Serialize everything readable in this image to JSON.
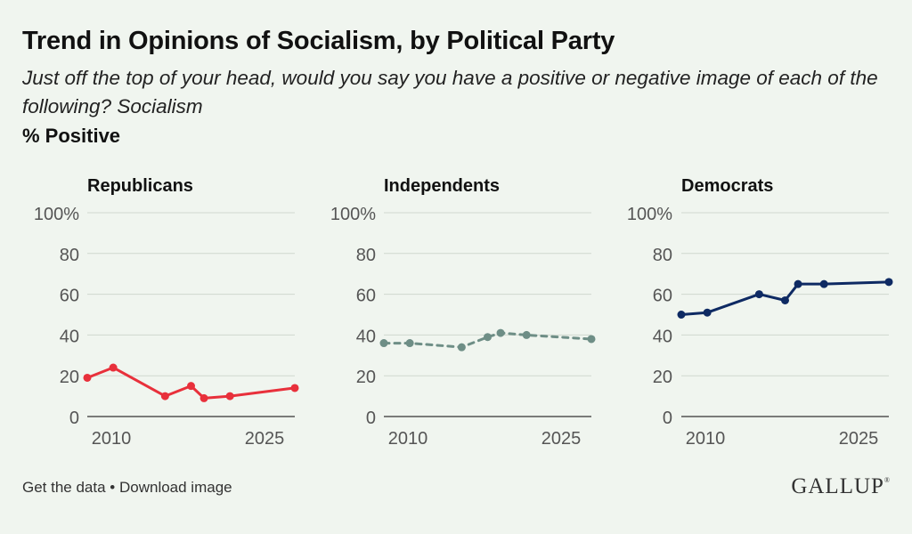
{
  "header": {
    "title": "Trend in Opinions of Socialism, by Political Party",
    "subtitle": "Just off the top of your head, would you say you have a positive or negative image of each of the following? Socialism",
    "measure": "% Positive"
  },
  "footer": {
    "get_data": "Get the data",
    "separator": " • ",
    "download": "Download image",
    "logo": "GALLUP",
    "logo_mark": "®"
  },
  "chart_data": [
    {
      "type": "line",
      "title": "Republicans",
      "x_ticks": [
        "2010",
        "2025"
      ],
      "y_ticks": [
        "100%",
        "80",
        "60",
        "40",
        "20",
        "0"
      ],
      "ylim": [
        0,
        100
      ],
      "xlim": [
        2010,
        2026
      ],
      "grid": true,
      "color": "#e8303b",
      "style": "solid",
      "series": [
        {
          "x": [
            2010,
            2012,
            2016,
            2018,
            2019,
            2021,
            2026
          ],
          "values": [
            19,
            24,
            10,
            15,
            9,
            10,
            14
          ]
        }
      ]
    },
    {
      "type": "line",
      "title": "Independents",
      "x_ticks": [
        "2010",
        "2025"
      ],
      "y_ticks": [
        "100%",
        "80",
        "60",
        "40",
        "20",
        "0"
      ],
      "ylim": [
        0,
        100
      ],
      "xlim": [
        2010,
        2026
      ],
      "grid": true,
      "color": "#6e8e86",
      "style": "dashed",
      "series": [
        {
          "x": [
            2010,
            2012,
            2016,
            2018,
            2019,
            2021,
            2026
          ],
          "values": [
            36,
            36,
            34,
            39,
            41,
            40,
            38
          ]
        }
      ]
    },
    {
      "type": "line",
      "title": "Democrats",
      "x_ticks": [
        "2010",
        "2025"
      ],
      "y_ticks": [
        "100%",
        "80",
        "60",
        "40",
        "20",
        "0"
      ],
      "ylim": [
        0,
        100
      ],
      "xlim": [
        2010,
        2026
      ],
      "grid": true,
      "color": "#0e2a63",
      "style": "solid",
      "series": [
        {
          "x": [
            2010,
            2012,
            2016,
            2018,
            2019,
            2021,
            2026
          ],
          "values": [
            50,
            51,
            60,
            57,
            65,
            65,
            66
          ]
        }
      ]
    }
  ]
}
